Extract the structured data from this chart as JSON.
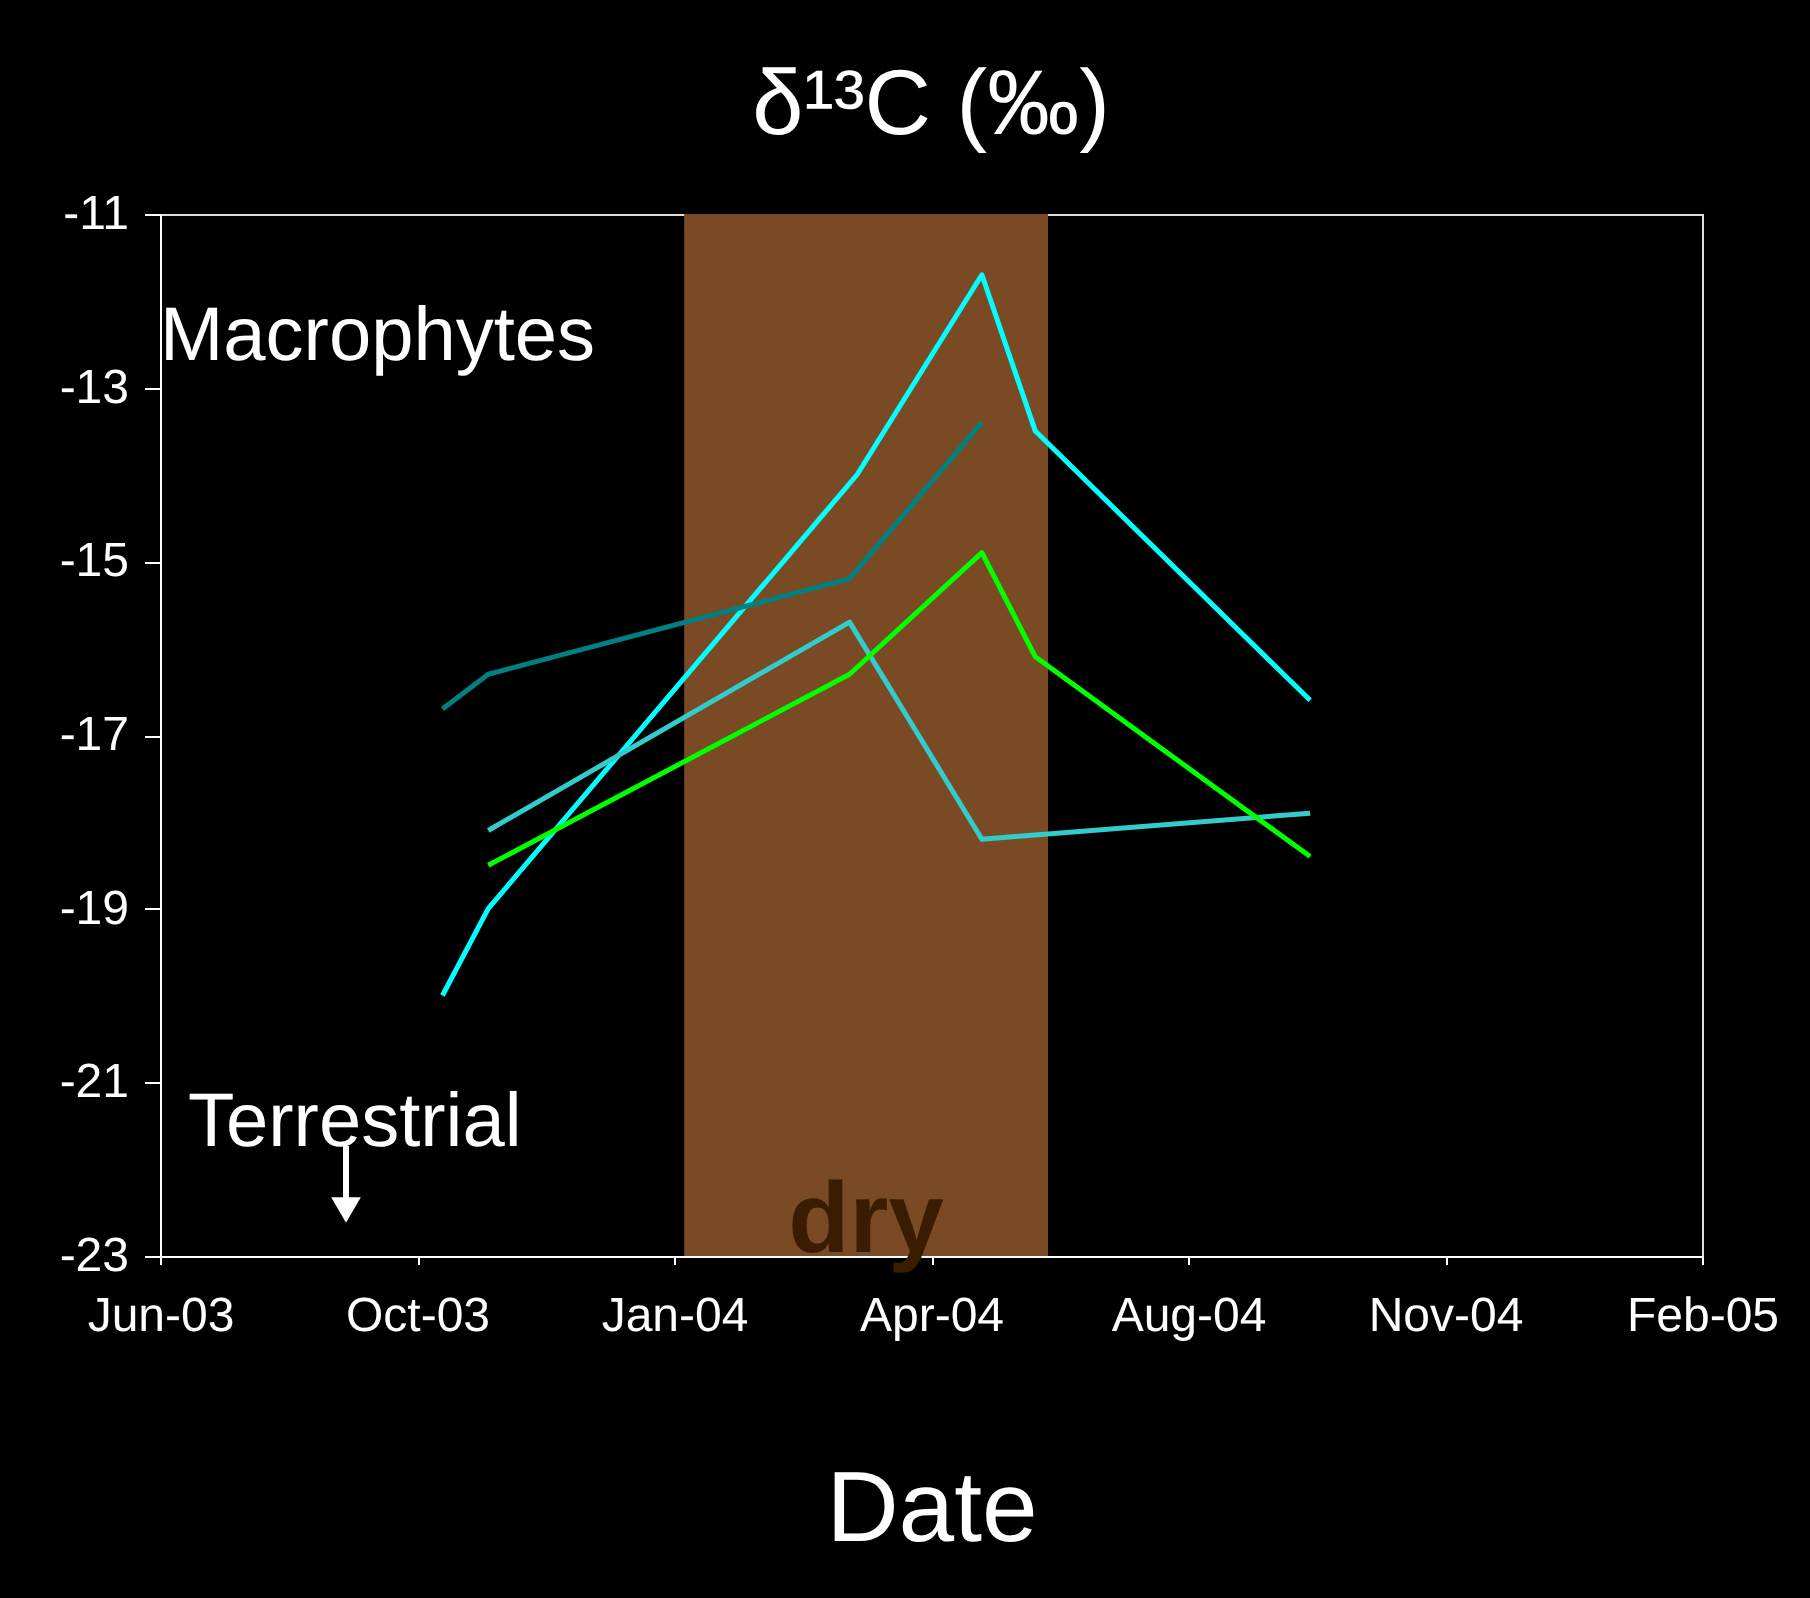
{
  "chart_data": {
    "type": "line",
    "title": "δ¹³C (‰)",
    "xlabel": "Date",
    "xlim": [
      "2003-06-28",
      "2005-02-23"
    ],
    "xticks": [
      {
        "value": "2003-06-28",
        "label": "Jun-03"
      },
      {
        "value": "2003-10-07",
        "label": "Oct-03"
      },
      {
        "value": "2004-01-16",
        "label": "Jan-04"
      },
      {
        "value": "2004-04-26",
        "label": "Apr-04"
      },
      {
        "value": "2004-08-05",
        "label": "Aug-04"
      },
      {
        "value": "2004-11-14",
        "label": "Nov-04"
      },
      {
        "value": "2005-02-23",
        "label": "Feb-05"
      }
    ],
    "ylim": [
      -23,
      -11
    ],
    "yticks": [
      -23,
      -21,
      -19,
      -17,
      -15,
      -13,
      -11
    ],
    "series": [
      {
        "color": "#00ffff",
        "x": [
          "2003-10-17",
          "2003-11-04",
          "2004-03-28",
          "2004-05-16",
          "2004-06-06",
          "2004-09-22"
        ],
        "values": [
          -20.0,
          -19.0,
          -14.0,
          -11.7,
          -13.5,
          -16.6
        ]
      },
      {
        "color": "#008080",
        "x": [
          "2003-10-17",
          "2003-11-04",
          "2004-03-25",
          "2004-05-16"
        ],
        "values": [
          -16.7,
          -16.3,
          -15.2,
          -13.4
        ]
      },
      {
        "color": "#33cccc",
        "x": [
          "2003-11-04",
          "2004-03-25",
          "2004-05-16",
          "2004-09-22"
        ],
        "values": [
          -18.1,
          -15.7,
          -18.2,
          -17.9
        ]
      },
      {
        "color": "#00ff00",
        "x": [
          "2003-11-04",
          "2004-03-25",
          "2004-05-16",
          "2004-06-06",
          "2004-09-22"
        ],
        "values": [
          -18.5,
          -16.3,
          -14.9,
          -16.1,
          -18.4
        ]
      }
    ],
    "bands": [
      {
        "axis": "x",
        "from": "2004-01-20",
        "to": "2004-06-11",
        "label": "dry",
        "color": "#7a4a24"
      }
    ],
    "annotations": [
      "Macrophytes",
      "Terrestrial"
    ],
    "grid": false,
    "legend": false,
    "marker": "none",
    "line_style": "solid"
  }
}
